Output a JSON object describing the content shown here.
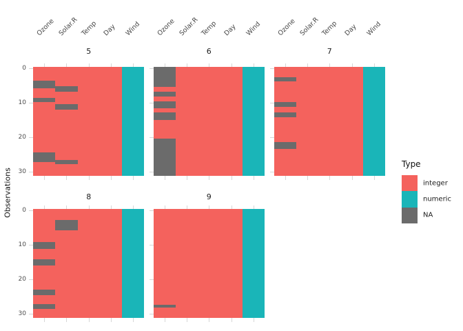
{
  "chart_data": {
    "type": "heatmap",
    "title": "",
    "ylabel": "Observations",
    "columns": [
      "Ozone",
      "Solar.R",
      "Temp",
      "Day",
      "Wind"
    ],
    "column_types": {
      "Ozone": "integer",
      "Solar.R": "integer",
      "Temp": "integer",
      "Day": "integer",
      "Wind": "numeric"
    },
    "type_colors": {
      "integer": "#F4625D",
      "numeric": "#1AB5B8",
      "NA": "#6B6B6B"
    },
    "y_ticks": [
      "0",
      "10",
      "20",
      "30"
    ],
    "x_axis_label_rotation": 45,
    "grid": false,
    "legend": {
      "title": "Type",
      "position": "right",
      "entries": [
        {
          "label": "integer",
          "color": "#F4625D"
        },
        {
          "label": "numeric",
          "color": "#1AB5B8"
        },
        {
          "label": "NA",
          "color": "#6B6B6B"
        }
      ]
    },
    "facets": [
      {
        "label": "5",
        "rows": 31,
        "na_spans": {
          "Ozone": [
            [
              4.0,
              6.0
            ],
            [
              8.8,
              10.0
            ],
            [
              24.4,
              27.0
            ]
          ],
          "Solar.R": [
            [
              5.4,
              7.1
            ],
            [
              10.5,
              12.2
            ],
            [
              26.4,
              27.7
            ]
          ]
        }
      },
      {
        "label": "6",
        "rows": 30,
        "na_spans": {
          "Ozone": [
            [
              0.0,
              5.6
            ],
            [
              6.9,
              8.1
            ],
            [
              9.4,
              11.4
            ],
            [
              12.6,
              14.6
            ],
            [
              19.7,
              30.0
            ]
          ]
        }
      },
      {
        "label": "7",
        "rows": 31,
        "na_spans": {
          "Ozone": [
            [
              2.9,
              4.1
            ],
            [
              10.1,
              11.4
            ],
            [
              12.9,
              14.3
            ],
            [
              21.4,
              23.4
            ]
          ]
        }
      },
      {
        "label": "8",
        "rows": 31,
        "na_spans": {
          "Ozone": [
            [
              9.4,
              11.4
            ],
            [
              14.4,
              16.1
            ],
            [
              22.9,
              24.5
            ],
            [
              27.1,
              28.5
            ]
          ],
          "Solar.R": [
            [
              3.1,
              6.1
            ]
          ]
        }
      },
      {
        "label": "9",
        "rows": 30,
        "na_spans": {
          "Ozone": [
            [
              26.3,
              27.2
            ]
          ]
        }
      }
    ]
  }
}
